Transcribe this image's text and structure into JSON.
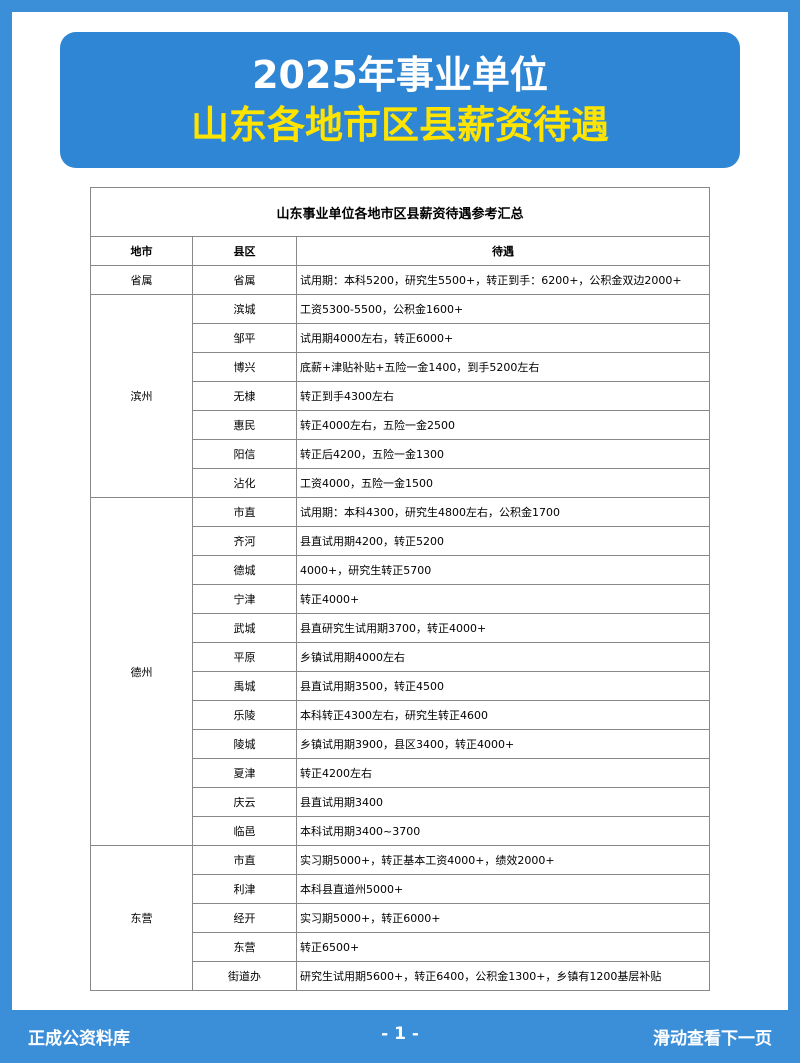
{
  "header": {
    "line1": "2025年事业单位",
    "line2": "山东各地市区县薪资待遇"
  },
  "table": {
    "title": "山东事业单位各地市区县薪资待遇参考汇总",
    "columns": [
      "地市",
      "县区",
      "待遇"
    ],
    "groups": [
      {
        "city": "省属",
        "rows": [
          {
            "county": "省属",
            "pay": "试用期：本科5200，研究生5500+，转正到手：6200+，公积金双边2000+"
          }
        ]
      },
      {
        "city": "滨州",
        "rows": [
          {
            "county": "滨城",
            "pay": "工资5300-5500，公积金1600+"
          },
          {
            "county": "邹平",
            "pay": "试用期4000左右，转正6000+"
          },
          {
            "county": "博兴",
            "pay": "底薪+津贴补贴+五险一金1400，到手5200左右"
          },
          {
            "county": "无棣",
            "pay": "转正到手4300左右"
          },
          {
            "county": "惠民",
            "pay": "转正4000左右，五险一金2500"
          },
          {
            "county": "阳信",
            "pay": "转正后4200，五险一金1300"
          },
          {
            "county": "沾化",
            "pay": "工资4000，五险一金1500"
          }
        ]
      },
      {
        "city": "德州",
        "rows": [
          {
            "county": "市直",
            "pay": "试用期：本科4300，研究生4800左右，公积金1700"
          },
          {
            "county": "齐河",
            "pay": "县直试用期4200，转正5200"
          },
          {
            "county": "德城",
            "pay": "4000+，研究生转正5700"
          },
          {
            "county": "宁津",
            "pay": "转正4000+"
          },
          {
            "county": "武城",
            "pay": "县直研究生试用期3700，转正4000+"
          },
          {
            "county": "平原",
            "pay": "乡镇试用期4000左右"
          },
          {
            "county": "禹城",
            "pay": "县直试用期3500，转正4500"
          },
          {
            "county": "乐陵",
            "pay": "本科转正4300左右，研究生转正4600"
          },
          {
            "county": "陵城",
            "pay": "乡镇试用期3900，县区3400，转正4000+"
          },
          {
            "county": "夏津",
            "pay": "转正4200左右"
          },
          {
            "county": "庆云",
            "pay": "县直试用期3400"
          },
          {
            "county": "临邑",
            "pay": "本科试用期3400~3700"
          }
        ]
      },
      {
        "city": "东营",
        "rows": [
          {
            "county": "市直",
            "pay": "实习期5000+，转正基本工资4000+，绩效2000+"
          },
          {
            "county": "利津",
            "pay": "本科县直道州5000+"
          },
          {
            "county": "经开",
            "pay": "实习期5000+，转正6000+"
          },
          {
            "county": "东营",
            "pay": "转正6500+"
          },
          {
            "county": "街道办",
            "pay": "研究生试用期5600+，转正6400，公积金1300+，乡镇有1200基层补贴"
          }
        ]
      }
    ]
  },
  "footer": {
    "left": "正成公资料库",
    "center": "- 1 -",
    "right": "滑动查看下一页"
  }
}
